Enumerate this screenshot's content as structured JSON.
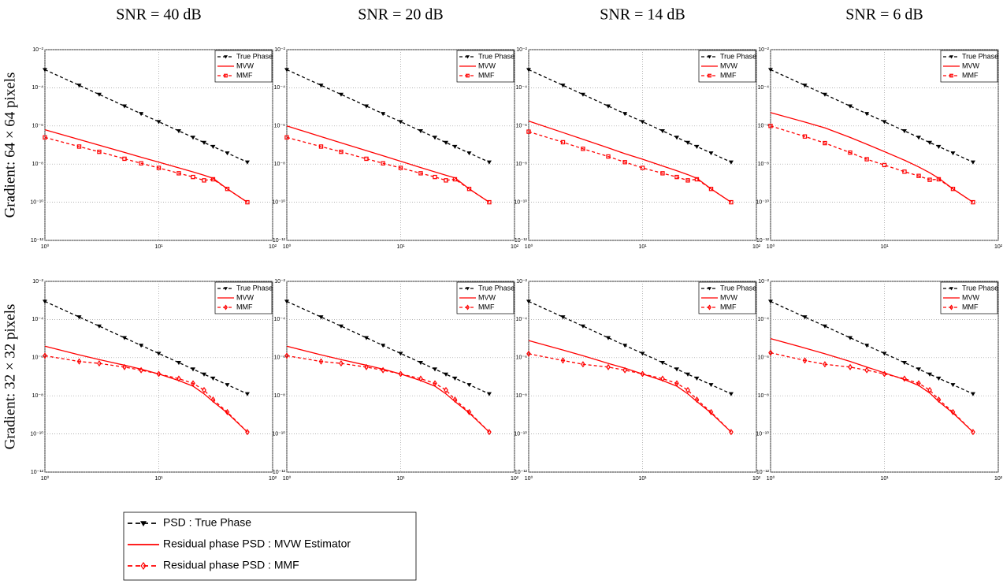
{
  "column_titles": [
    "SNR = 40 dB",
    "SNR = 20 dB",
    "SNR = 14 dB",
    "SNR = 6 dB"
  ],
  "row_labels": [
    "Gradient: 64 × 64 pixels",
    "Gradient: 32 × 32 pixels"
  ],
  "legend": {
    "entries": [
      "PSD : True Phase",
      "Residual phase PSD : MVW Estimator",
      "Residual phase PSD : MMF"
    ]
  },
  "chart_data": [
    {
      "type": "line",
      "xscale": "log",
      "yscale": "log",
      "grid": true,
      "legend": "upper right",
      "xlim": [
        1,
        100
      ],
      "ylim": [
        1e-12,
        0.01
      ],
      "xticks": [
        {
          "value": 1,
          "label": "10⁰"
        },
        {
          "value": 10,
          "label": "10¹"
        },
        {
          "value": 100,
          "label": "10²"
        }
      ],
      "yticks": [
        {
          "value": 1e-12,
          "label": "10⁻¹²"
        },
        {
          "value": 1e-10,
          "label": "10⁻¹⁰"
        },
        {
          "value": 1e-08,
          "label": "10⁻⁸"
        },
        {
          "value": 1e-06,
          "label": "10⁻⁶"
        },
        {
          "value": 0.0001,
          "label": "10⁻⁴"
        },
        {
          "value": 0.01,
          "label": "10⁻²"
        }
      ],
      "x": [
        1,
        2,
        3,
        5,
        7,
        10,
        15,
        20,
        25,
        30,
        40,
        60
      ],
      "series": [
        {
          "name": "True Phase",
          "color": "#000000",
          "dash": "dashed",
          "marker": "triangle-down",
          "values": [
            0.00089,
            0.000135,
            4.5e-05,
            1.1e-05,
            4.4e-06,
            1.66e-06,
            5.5e-07,
            2.5e-07,
            1.35e-07,
            8.3e-08,
            3.8e-08,
            1.26e-08
          ]
        },
        {
          "name": "MVW",
          "color": "#ff0000",
          "dash": "solid",
          "marker": "none",
          "values": [
            6.3e-07,
            1.95e-07,
            9.8e-08,
            4.1e-08,
            2.3e-08,
            1.26e-08,
            6.3e-09,
            3.9e-09,
            2.6e-09,
            1.8e-09,
            5e-10,
            1e-10
          ]
        },
        {
          "name": "MMF",
          "color": "#ff0000",
          "dash": "dashed",
          "marker": "square",
          "values": [
            2.5e-07,
            8.3e-08,
            4.4e-08,
            1.9e-08,
            1.1e-08,
            6.3e-09,
            3.3e-09,
            2.1e-09,
            1.4e-09,
            1.6e-09,
            5e-10,
            1e-10
          ]
        }
      ]
    },
    {
      "type": "line",
      "xscale": "log",
      "yscale": "log",
      "grid": true,
      "legend": "upper right",
      "xlim": [
        1,
        100
      ],
      "ylim": [
        1e-12,
        0.01
      ],
      "xticks": [
        {
          "value": 1,
          "label": "10⁰"
        },
        {
          "value": 10,
          "label": "10¹"
        },
        {
          "value": 100,
          "label": "10²"
        }
      ],
      "yticks": [
        {
          "value": 1e-12,
          "label": "10⁻¹²"
        },
        {
          "value": 1e-10,
          "label": "10⁻¹⁰"
        },
        {
          "value": 1e-08,
          "label": "10⁻⁸"
        },
        {
          "value": 1e-06,
          "label": "10⁻⁶"
        },
        {
          "value": 0.0001,
          "label": "10⁻⁴"
        },
        {
          "value": 0.01,
          "label": "10⁻²"
        }
      ],
      "x": [
        1,
        2,
        3,
        5,
        7,
        10,
        15,
        20,
        25,
        30,
        40,
        60
      ],
      "series": [
        {
          "name": "True Phase",
          "color": "#000000",
          "dash": "dashed",
          "marker": "triangle-down",
          "values": [
            0.00089,
            0.000135,
            4.5e-05,
            1.1e-05,
            4.4e-06,
            1.66e-06,
            5.5e-07,
            2.5e-07,
            1.35e-07,
            8.3e-08,
            3.8e-08,
            1.26e-08
          ]
        },
        {
          "name": "MVW",
          "color": "#ff0000",
          "dash": "solid",
          "marker": "none",
          "values": [
            1e-06,
            2.75e-07,
            1.3e-07,
            5.1e-08,
            2.75e-08,
            1.4e-08,
            6.6e-09,
            3.9e-09,
            2.6e-09,
            1.9e-09,
            5e-10,
            1e-10
          ]
        },
        {
          "name": "MMF",
          "color": "#ff0000",
          "dash": "dashed",
          "marker": "square",
          "values": [
            2.5e-07,
            8.3e-08,
            4.4e-08,
            1.9e-08,
            1.1e-08,
            6.3e-09,
            3.3e-09,
            2.1e-09,
            1.4e-09,
            1.6e-09,
            5e-10,
            1e-10
          ]
        }
      ]
    },
    {
      "type": "line",
      "xscale": "log",
      "yscale": "log",
      "grid": true,
      "legend": "upper right",
      "xlim": [
        1,
        100
      ],
      "ylim": [
        1e-12,
        0.01
      ],
      "xticks": [
        {
          "value": 1,
          "label": "10⁰"
        },
        {
          "value": 10,
          "label": "10¹"
        },
        {
          "value": 100,
          "label": "10²"
        }
      ],
      "yticks": [
        {
          "value": 1e-12,
          "label": "10⁻¹²"
        },
        {
          "value": 1e-10,
          "label": "10⁻¹⁰"
        },
        {
          "value": 1e-08,
          "label": "10⁻⁸"
        },
        {
          "value": 1e-06,
          "label": "10⁻⁶"
        },
        {
          "value": 0.0001,
          "label": "10⁻⁴"
        },
        {
          "value": 0.01,
          "label": "10⁻²"
        }
      ],
      "x": [
        1,
        2,
        3,
        5,
        7,
        10,
        15,
        20,
        25,
        30,
        40,
        60
      ],
      "series": [
        {
          "name": "True Phase",
          "color": "#000000",
          "dash": "dashed",
          "marker": "triangle-down",
          "values": [
            0.00089,
            0.000135,
            4.5e-05,
            1.1e-05,
            4.4e-06,
            1.66e-06,
            5.5e-07,
            2.5e-07,
            1.35e-07,
            8.3e-08,
            3.8e-08,
            1.26e-08
          ]
        },
        {
          "name": "MVW",
          "color": "#ff0000",
          "dash": "solid",
          "marker": "none",
          "values": [
            1.8e-06,
            4.5e-07,
            2e-07,
            7.1e-08,
            3.5e-08,
            1.8e-08,
            7.9e-09,
            4.5e-09,
            2.8e-09,
            1.8e-09,
            5e-10,
            1e-10
          ]
        },
        {
          "name": "MMF",
          "color": "#ff0000",
          "dash": "dashed",
          "marker": "square",
          "values": [
            5e-07,
            1.4e-07,
            6.3e-08,
            2.5e-08,
            1.26e-08,
            6.3e-09,
            3.3e-09,
            2.1e-09,
            1.4e-09,
            1.6e-09,
            5e-10,
            1e-10
          ]
        }
      ]
    },
    {
      "type": "line",
      "xscale": "log",
      "yscale": "log",
      "grid": true,
      "legend": "upper right",
      "xlim": [
        1,
        100
      ],
      "ylim": [
        1e-12,
        0.01
      ],
      "xticks": [
        {
          "value": 1,
          "label": "10⁰"
        },
        {
          "value": 10,
          "label": "10¹"
        },
        {
          "value": 100,
          "label": "10²"
        }
      ],
      "yticks": [
        {
          "value": 1e-12,
          "label": "10⁻¹²"
        },
        {
          "value": 1e-10,
          "label": "10⁻¹⁰"
        },
        {
          "value": 1e-08,
          "label": "10⁻⁸"
        },
        {
          "value": 1e-06,
          "label": "10⁻⁶"
        },
        {
          "value": 0.0001,
          "label": "10⁻⁴"
        },
        {
          "value": 0.01,
          "label": "10⁻²"
        }
      ],
      "x": [
        1,
        2,
        3,
        5,
        7,
        10,
        15,
        20,
        25,
        30,
        40,
        60
      ],
      "series": [
        {
          "name": "True Phase",
          "color": "#000000",
          "dash": "dashed",
          "marker": "triangle-down",
          "values": [
            0.00089,
            0.000135,
            4.5e-05,
            1.1e-05,
            4.4e-06,
            1.66e-06,
            5.5e-07,
            2.5e-07,
            1.35e-07,
            8.3e-08,
            3.8e-08,
            1.26e-08
          ]
        },
        {
          "name": "MVW",
          "color": "#ff0000",
          "dash": "solid",
          "marker": "none",
          "values": [
            5e-06,
            1.6e-06,
            7.9e-07,
            2.5e-07,
            1.1e-07,
            4.5e-08,
            1.6e-08,
            7.1e-09,
            3.5e-09,
            1.8e-09,
            5e-10,
            1e-10
          ]
        },
        {
          "name": "MMF",
          "color": "#ff0000",
          "dash": "dashed",
          "marker": "square",
          "values": [
            1e-06,
            2.8e-07,
            1.26e-07,
            4e-08,
            1.8e-08,
            8.9e-09,
            4e-09,
            2.4e-09,
            1.5e-09,
            1.6e-09,
            5e-10,
            1e-10
          ]
        }
      ]
    },
    {
      "type": "line",
      "xscale": "log",
      "yscale": "log",
      "grid": true,
      "legend": "upper right",
      "xlim": [
        1,
        100
      ],
      "ylim": [
        1e-12,
        0.01
      ],
      "xticks": [
        {
          "value": 1,
          "label": "10⁰"
        },
        {
          "value": 10,
          "label": "10¹"
        },
        {
          "value": 100,
          "label": "10²"
        }
      ],
      "yticks": [
        {
          "value": 1e-12,
          "label": "10⁻¹²"
        },
        {
          "value": 1e-10,
          "label": "10⁻¹⁰"
        },
        {
          "value": 1e-08,
          "label": "10⁻⁸"
        },
        {
          "value": 1e-06,
          "label": "10⁻⁶"
        },
        {
          "value": 0.0001,
          "label": "10⁻⁴"
        },
        {
          "value": 0.01,
          "label": "10⁻²"
        }
      ],
      "x": [
        1,
        2,
        3,
        5,
        7,
        10,
        15,
        20,
        25,
        30,
        40,
        60
      ],
      "series": [
        {
          "name": "True Phase",
          "color": "#000000",
          "dash": "dashed",
          "marker": "triangle-down",
          "values": [
            0.00089,
            0.000135,
            4.5e-05,
            1.1e-05,
            4.4e-06,
            1.66e-06,
            5.5e-07,
            2.5e-07,
            1.35e-07,
            8.3e-08,
            3.8e-08,
            1.26e-08
          ]
        },
        {
          "name": "MVW",
          "color": "#ff0000",
          "dash": "solid",
          "marker": "none",
          "values": [
            4e-06,
            1.4e-06,
            7.9e-07,
            4e-07,
            2.5e-07,
            1.4e-07,
            6.3e-08,
            3.2e-08,
            1.26e-08,
            5e-09,
            1.26e-09,
            1.26e-10
          ]
        },
        {
          "name": "MMF",
          "color": "#ff0000",
          "dash": "dashed",
          "marker": "diamond",
          "values": [
            1.26e-06,
            6.3e-07,
            5e-07,
            3.2e-07,
            2.2e-07,
            1.4e-07,
            7.9e-08,
            4.5e-08,
            2e-08,
            6.3e-09,
            1.4e-09,
            1.26e-10
          ]
        }
      ]
    },
    {
      "type": "line",
      "xscale": "log",
      "yscale": "log",
      "grid": true,
      "legend": "upper right",
      "xlim": [
        1,
        100
      ],
      "ylim": [
        1e-12,
        0.01
      ],
      "xticks": [
        {
          "value": 1,
          "label": "10⁰"
        },
        {
          "value": 10,
          "label": "10¹"
        },
        {
          "value": 100,
          "label": "10²"
        }
      ],
      "yticks": [
        {
          "value": 1e-12,
          "label": "10⁻¹²"
        },
        {
          "value": 1e-10,
          "label": "10⁻¹⁰"
        },
        {
          "value": 1e-08,
          "label": "10⁻⁸"
        },
        {
          "value": 1e-06,
          "label": "10⁻⁶"
        },
        {
          "value": 0.0001,
          "label": "10⁻⁴"
        },
        {
          "value": 0.01,
          "label": "10⁻²"
        }
      ],
      "x": [
        1,
        2,
        3,
        5,
        7,
        10,
        15,
        20,
        25,
        30,
        40,
        60
      ],
      "series": [
        {
          "name": "True Phase",
          "color": "#000000",
          "dash": "dashed",
          "marker": "triangle-down",
          "values": [
            0.00089,
            0.000135,
            4.5e-05,
            1.1e-05,
            4.4e-06,
            1.66e-06,
            5.5e-07,
            2.5e-07,
            1.35e-07,
            8.3e-08,
            3.8e-08,
            1.26e-08
          ]
        },
        {
          "name": "MVW",
          "color": "#ff0000",
          "dash": "solid",
          "marker": "none",
          "values": [
            4e-06,
            1.4e-06,
            7.9e-07,
            4e-07,
            2.5e-07,
            1.4e-07,
            6.3e-08,
            3.2e-08,
            1.26e-08,
            5e-09,
            1.26e-09,
            1.26e-10
          ]
        },
        {
          "name": "MMF",
          "color": "#ff0000",
          "dash": "dashed",
          "marker": "diamond",
          "values": [
            1.26e-06,
            6.3e-07,
            5e-07,
            3.2e-07,
            2.2e-07,
            1.4e-07,
            7.9e-08,
            4.5e-08,
            2e-08,
            6.3e-09,
            1.4e-09,
            1.26e-10
          ]
        }
      ]
    },
    {
      "type": "line",
      "xscale": "log",
      "yscale": "log",
      "grid": true,
      "legend": "upper right",
      "xlim": [
        1,
        100
      ],
      "ylim": [
        1e-12,
        0.01
      ],
      "xticks": [
        {
          "value": 1,
          "label": "10⁰"
        },
        {
          "value": 10,
          "label": "10¹"
        },
        {
          "value": 100,
          "label": "10²"
        }
      ],
      "yticks": [
        {
          "value": 1e-12,
          "label": "10⁻¹²"
        },
        {
          "value": 1e-10,
          "label": "10⁻¹⁰"
        },
        {
          "value": 1e-08,
          "label": "10⁻⁸"
        },
        {
          "value": 1e-06,
          "label": "10⁻⁶"
        },
        {
          "value": 0.0001,
          "label": "10⁻⁴"
        },
        {
          "value": 0.01,
          "label": "10⁻²"
        }
      ],
      "x": [
        1,
        2,
        3,
        5,
        7,
        10,
        15,
        20,
        25,
        30,
        40,
        60
      ],
      "series": [
        {
          "name": "True Phase",
          "color": "#000000",
          "dash": "dashed",
          "marker": "triangle-down",
          "values": [
            0.00089,
            0.000135,
            4.5e-05,
            1.1e-05,
            4.4e-06,
            1.66e-06,
            5.5e-07,
            2.5e-07,
            1.35e-07,
            8.3e-08,
            3.8e-08,
            1.26e-08
          ]
        },
        {
          "name": "MVW",
          "color": "#ff0000",
          "dash": "solid",
          "marker": "none",
          "values": [
            7.9e-06,
            2.5e-06,
            1.26e-06,
            5e-07,
            2.8e-07,
            1.4e-07,
            6.3e-08,
            3.2e-08,
            1.26e-08,
            5e-09,
            1.26e-09,
            1.26e-10
          ]
        },
        {
          "name": "MMF",
          "color": "#ff0000",
          "dash": "dashed",
          "marker": "diamond",
          "values": [
            1.6e-06,
            7.1e-07,
            4.5e-07,
            3.2e-07,
            2.2e-07,
            1.4e-07,
            7.9e-08,
            4.5e-08,
            2e-08,
            6.3e-09,
            1.4e-09,
            1.26e-10
          ]
        }
      ]
    },
    {
      "type": "line",
      "xscale": "log",
      "yscale": "log",
      "grid": true,
      "legend": "upper right",
      "xlim": [
        1,
        100
      ],
      "ylim": [
        1e-12,
        0.01
      ],
      "xticks": [
        {
          "value": 1,
          "label": "10⁰"
        },
        {
          "value": 10,
          "label": "10¹"
        },
        {
          "value": 100,
          "label": "10²"
        }
      ],
      "yticks": [
        {
          "value": 1e-12,
          "label": "10⁻¹²"
        },
        {
          "value": 1e-10,
          "label": "10⁻¹⁰"
        },
        {
          "value": 1e-08,
          "label": "10⁻⁸"
        },
        {
          "value": 1e-06,
          "label": "10⁻⁶"
        },
        {
          "value": 0.0001,
          "label": "10⁻⁴"
        },
        {
          "value": 0.01,
          "label": "10⁻²"
        }
      ],
      "x": [
        1,
        2,
        3,
        5,
        7,
        10,
        15,
        20,
        25,
        30,
        40,
        60
      ],
      "series": [
        {
          "name": "True Phase",
          "color": "#000000",
          "dash": "dashed",
          "marker": "triangle-down",
          "values": [
            0.00089,
            0.000135,
            4.5e-05,
            1.1e-05,
            4.4e-06,
            1.66e-06,
            5.5e-07,
            2.5e-07,
            1.35e-07,
            8.3e-08,
            3.8e-08,
            1.26e-08
          ]
        },
        {
          "name": "MVW",
          "color": "#ff0000",
          "dash": "solid",
          "marker": "none",
          "values": [
            1e-05,
            3.2e-06,
            1.6e-06,
            6.3e-07,
            3.2e-07,
            1.6e-07,
            7.1e-08,
            3.5e-08,
            1.4e-08,
            5e-09,
            1.26e-09,
            1.26e-10
          ]
        },
        {
          "name": "MMF",
          "color": "#ff0000",
          "dash": "dashed",
          "marker": "diamond",
          "values": [
            1.8e-06,
            7.1e-07,
            4.5e-07,
            3.2e-07,
            2.2e-07,
            1.4e-07,
            7.9e-08,
            4.5e-08,
            2e-08,
            6.3e-09,
            1.4e-09,
            1.26e-10
          ]
        }
      ]
    }
  ]
}
